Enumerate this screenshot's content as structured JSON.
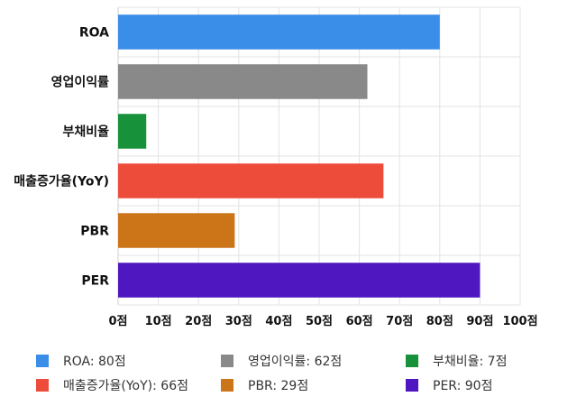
{
  "chart_data": {
    "type": "bar",
    "orientation": "horizontal",
    "categories": [
      "ROA",
      "영업이익률",
      "부채비율",
      "매출증가율(YoY)",
      "PBR",
      "PER"
    ],
    "values": [
      80,
      62,
      7,
      66,
      29,
      90
    ],
    "colors": [
      "#3a8ee8",
      "#898989",
      "#18923a",
      "#ee4c3a",
      "#cc7418",
      "#4e17c0"
    ],
    "xlim": [
      0,
      100
    ],
    "xticks": [
      {
        "value": 0,
        "label": "0점"
      },
      {
        "value": 10,
        "label": "10점"
      },
      {
        "value": 20,
        "label": "20점"
      },
      {
        "value": 30,
        "label": "30점"
      },
      {
        "value": 40,
        "label": "40점"
      },
      {
        "value": 50,
        "label": "50점"
      },
      {
        "value": 60,
        "label": "60점"
      },
      {
        "value": 70,
        "label": "70점"
      },
      {
        "value": 80,
        "label": "80점"
      },
      {
        "value": 90,
        "label": "90점"
      },
      {
        "value": 100,
        "label": "100점"
      }
    ],
    "grid": true,
    "legend_position": "bottom",
    "legend": [
      {
        "label": "ROA: 80점",
        "color": "#3a8ee8"
      },
      {
        "label": "영업이익률: 62점",
        "color": "#898989"
      },
      {
        "label": "부채비율: 7점",
        "color": "#18923a"
      },
      {
        "label": "매출증가율(YoY): 66점",
        "color": "#ee4c3a"
      },
      {
        "label": "PBR: 29점",
        "color": "#cc7418"
      },
      {
        "label": "PER: 90점",
        "color": "#4e17c0"
      }
    ]
  }
}
